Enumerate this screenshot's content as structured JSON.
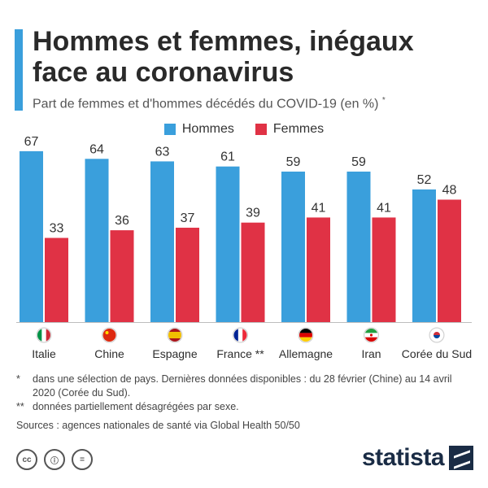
{
  "header": {
    "title": "Hommes et femmes, inégaux face au coronavirus",
    "subtitle": "Part de femmes et d'hommes décédés du COVID-19 (en %)",
    "subtitle_mark": "*"
  },
  "colors": {
    "hommes": "#3a9fdc",
    "femmes": "#e03245",
    "accent": "#3a9fdc"
  },
  "legend": [
    {
      "label": "Hommes",
      "color": "#3a9fdc"
    },
    {
      "label": "Femmes",
      "color": "#e03245"
    }
  ],
  "chart_data": {
    "type": "bar",
    "categories": [
      "Italie",
      "Chine",
      "Espagne",
      "France **",
      "Allemagne",
      "Iran",
      "Corée du Sud"
    ],
    "flags": [
      "flag-italy-icon",
      "flag-china-icon",
      "flag-spain-icon",
      "flag-france-icon",
      "flag-germany-icon",
      "flag-iran-icon",
      "flag-south-korea-icon"
    ],
    "series": [
      {
        "name": "Hommes",
        "values": [
          67,
          64,
          63,
          61,
          59,
          59,
          52
        ]
      },
      {
        "name": "Femmes",
        "values": [
          33,
          36,
          37,
          39,
          41,
          41,
          48
        ]
      }
    ],
    "ylim": [
      0,
      70
    ],
    "grid": false,
    "legend_position": "top-center"
  },
  "notes": [
    {
      "mark": "*",
      "text": "dans une sélection de pays. Dernières données disponibles : du 28 février (Chine) au 14 avril 2020 (Corée du Sud)."
    },
    {
      "mark": "**",
      "text": "données partiellement désagrégées par sexe."
    }
  ],
  "sources": "Sources : agences nationales de santé via Global Health 50/50",
  "footer": {
    "brand": "statista",
    "cc_icons": [
      "cc",
      "ⓘ",
      "="
    ]
  }
}
